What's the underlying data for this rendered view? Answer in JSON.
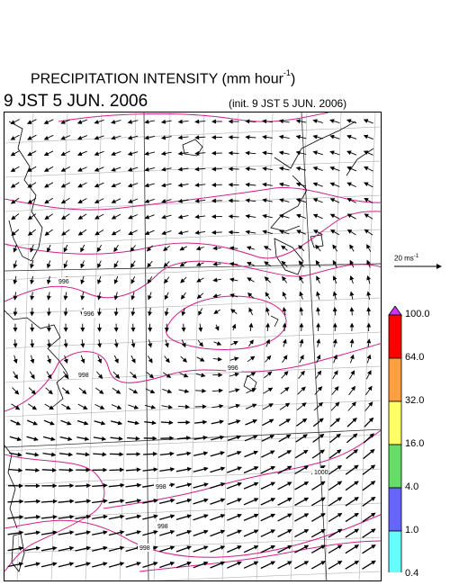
{
  "title": {
    "main": "PRECIPITATION INTENSITY (mm hour",
    "exponent": "-1",
    "close": ")"
  },
  "datetime": "9 JST 5 JUN. 2006",
  "init": "(init. 9 JST 5 JUN. 2006)",
  "reference_vector": {
    "label": "20 ms",
    "exponent": "-1"
  },
  "colorbar": {
    "levels": [
      "100.0",
      "64.0",
      "32.0",
      "16.0",
      "4.0",
      "1.0",
      "0.4"
    ],
    "colors": [
      "#ff0000",
      "#ffa040",
      "#ffff66",
      "#66dd66",
      "#6666ff",
      "#66ffff"
    ],
    "top_color": "#cc33ff",
    "bottom_color": "#ffffff"
  },
  "contour_labels": [
    "996",
    "996",
    "998",
    "996",
    "998",
    "1000",
    "998",
    "998"
  ],
  "colors": {
    "contour": "#d0208c",
    "grid": "#b0b0b0",
    "coast": "#000000",
    "vector": "#000000"
  }
}
